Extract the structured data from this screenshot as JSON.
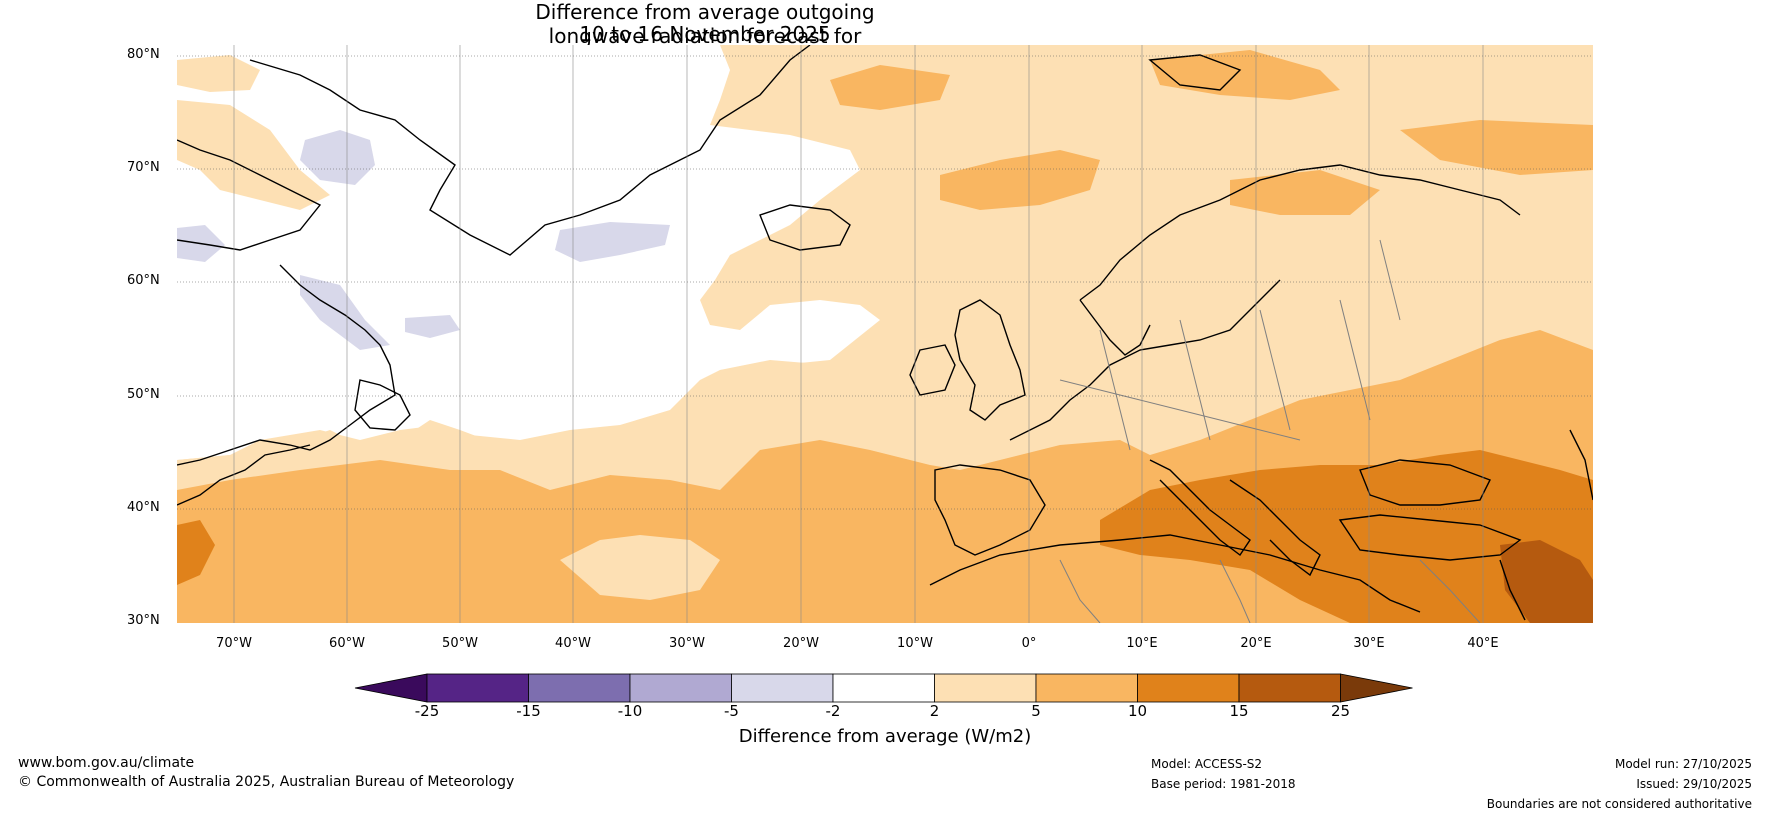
{
  "title": {
    "line1": "Difference from average outgoing longwave radiation forecast for",
    "line2": "10 to 16 November 2025"
  },
  "axes": {
    "lat_labels": [
      "80°N",
      "70°N",
      "60°N",
      "50°N",
      "40°N",
      "30°N"
    ],
    "lon_labels": [
      "70°W",
      "60°W",
      "50°W",
      "40°W",
      "30°W",
      "20°W",
      "10°W",
      "0°",
      "10°E",
      "20°E",
      "30°E",
      "40°E"
    ]
  },
  "colorbar": {
    "label": "Difference from average (W/m2)",
    "ticks": [
      "-25",
      "-15",
      "-10",
      "-5",
      "-2",
      "2",
      "5",
      "10",
      "15",
      "25"
    ],
    "colors": [
      "#3a0a5c",
      "#552486",
      "#7d6eaf",
      "#b0a9d2",
      "#d8d8ea",
      "#ffffff",
      "#fde0b4",
      "#f9b661",
      "#e0821b",
      "#b55a0f",
      "#7a3a0a"
    ]
  },
  "footer": {
    "website": "www.bom.gov.au/climate",
    "copyright": "© Commonwealth of Australia 2025, Australian Bureau of Meteorology",
    "model": "Model: ACCESS-S2",
    "base_period": "Base period: 1981-2018",
    "model_run": "Model run: 27/10/2025",
    "issued": "Issued: 29/10/2025",
    "disclaimer": "Boundaries are not considered authoritative"
  },
  "palette": {
    "light_orange": "#fde0b4",
    "orange": "#f9b661",
    "dark_orange": "#e0821b",
    "brown": "#b55a0f",
    "lavender": "#d8d8ea",
    "land_line": "#000000",
    "border_line": "#808080"
  }
}
